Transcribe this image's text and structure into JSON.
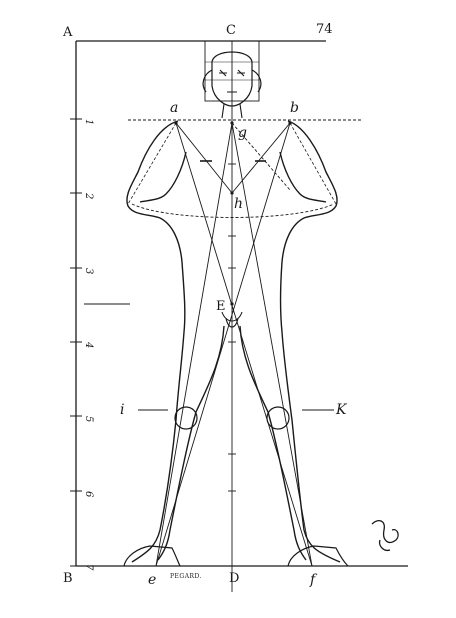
{
  "page_number": "74",
  "points": {
    "A": "A",
    "B": "B",
    "C": "C",
    "D": "D",
    "E": "E",
    "a": "a",
    "b": "b",
    "e": "e",
    "f": "f",
    "g": "g",
    "h": "h",
    "i": "i",
    "K": "K"
  },
  "scale_numbers": [
    "1",
    "2",
    "3",
    "4",
    "5",
    "6",
    "7"
  ],
  "engraver_signature": "PEGARD.",
  "colors": {
    "ink": "#1a1a1a",
    "paper": "#ffffff"
  }
}
